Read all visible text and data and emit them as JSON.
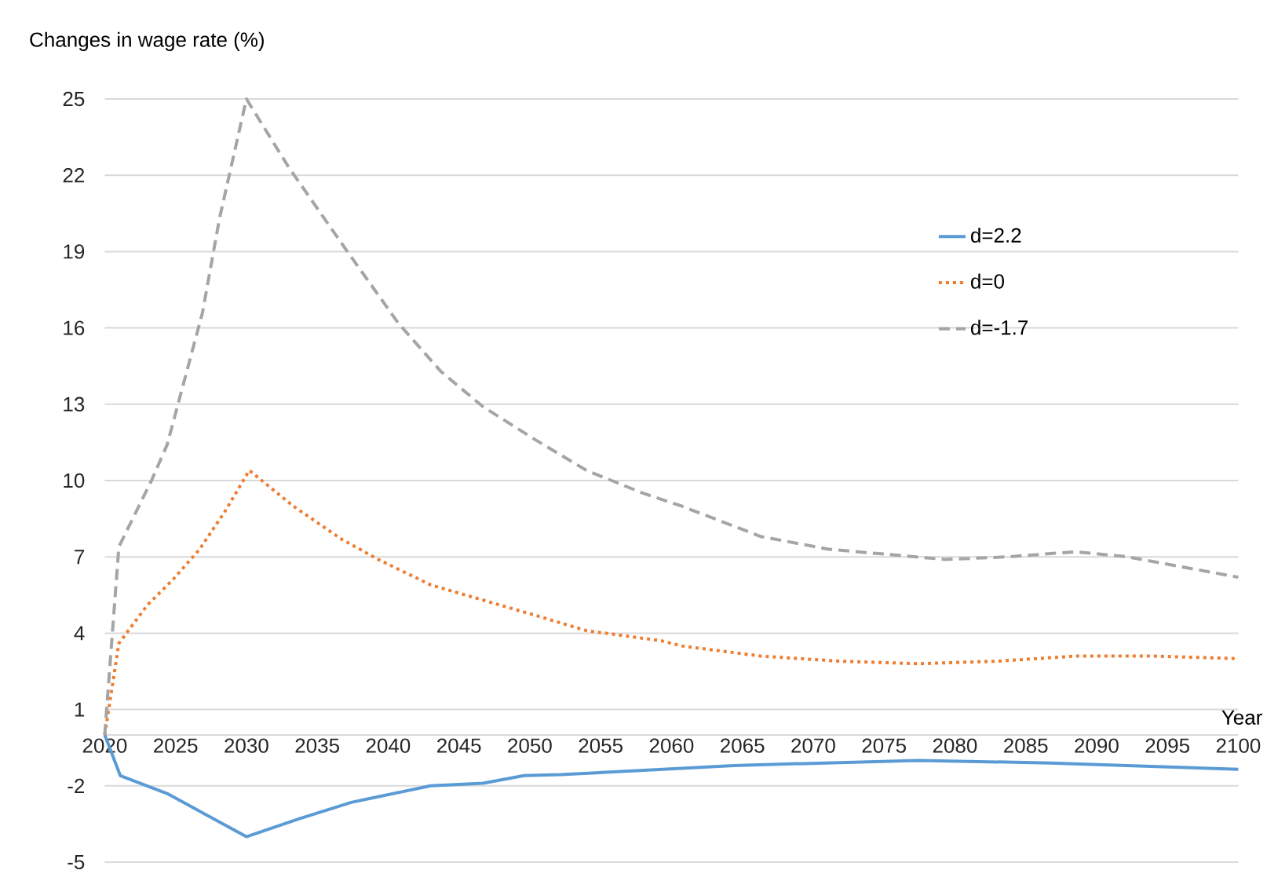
{
  "chart_data": {
    "type": "line",
    "ylabel": "Changes in wage rate (%)",
    "xlabel": "Year",
    "xlim": [
      2020,
      2100
    ],
    "xticks": [
      2020,
      2025,
      2030,
      2035,
      2040,
      2045,
      2050,
      2055,
      2060,
      2065,
      2070,
      2075,
      2080,
      2085,
      2090,
      2095,
      2100
    ],
    "ylim": [
      -5,
      25
    ],
    "yticks": [
      -5,
      -2,
      1,
      4,
      7,
      10,
      13,
      16,
      19,
      22,
      25
    ],
    "grid": "y",
    "legend": "right",
    "series": [
      {
        "name": "d=2.2",
        "color": "#5b9bd5",
        "line_style": "solid",
        "x": [
          2020,
          2021.1,
          2024.4,
          2030,
          2033.7,
          2037.4,
          2043,
          2046.7,
          2049.6,
          2052.2,
          2057.8,
          2064.4,
          2077.4,
          2086.7,
          2100
        ],
        "values": [
          0,
          -1.6,
          -2.3,
          -4.0,
          -3.3,
          -2.65,
          -2.0,
          -1.9,
          -1.6,
          -1.56,
          -1.4,
          -1.2,
          -1.0,
          -1.1,
          -1.35
        ]
      },
      {
        "name": "d=0",
        "color": "#ed7d31",
        "line_style": "dotted",
        "x": [
          2020,
          2021,
          2023,
          2024.8,
          2026.7,
          2028.5,
          2030.2,
          2033.3,
          2036.7,
          2039.3,
          2043,
          2046.7,
          2050.4,
          2054,
          2059.3,
          2060.7,
          2066.3,
          2071.9,
          2077.4,
          2083,
          2088.5,
          2094,
          2100
        ],
        "values": [
          0,
          3.6,
          5.1,
          6.1,
          7.3,
          8.8,
          10.4,
          9.0,
          7.7,
          6.9,
          5.9,
          5.3,
          4.7,
          4.1,
          3.7,
          3.5,
          3.1,
          2.9,
          2.8,
          2.9,
          3.1,
          3.1,
          3.0
        ]
      },
      {
        "name": "d=-1.7",
        "color": "#a5a5a5",
        "line_style": "dashed",
        "x": [
          2020,
          2021,
          2023.3,
          2024.4,
          2025.7,
          2026.9,
          2028.1,
          2030,
          2033,
          2037,
          2040.7,
          2043.7,
          2046.7,
          2050.4,
          2054,
          2058,
          2060.7,
          2066.3,
          2071.1,
          2079.3,
          2083.7,
          2088.5,
          2092.2,
          2100
        ],
        "values": [
          0,
          7.4,
          10.0,
          11.4,
          14.1,
          16.6,
          20.3,
          25,
          22.3,
          19.1,
          16.2,
          14.3,
          12.9,
          11.6,
          10.4,
          9.5,
          9.0,
          7.8,
          7.3,
          6.9,
          7.0,
          7.2,
          7.0,
          6.2
        ]
      }
    ]
  }
}
